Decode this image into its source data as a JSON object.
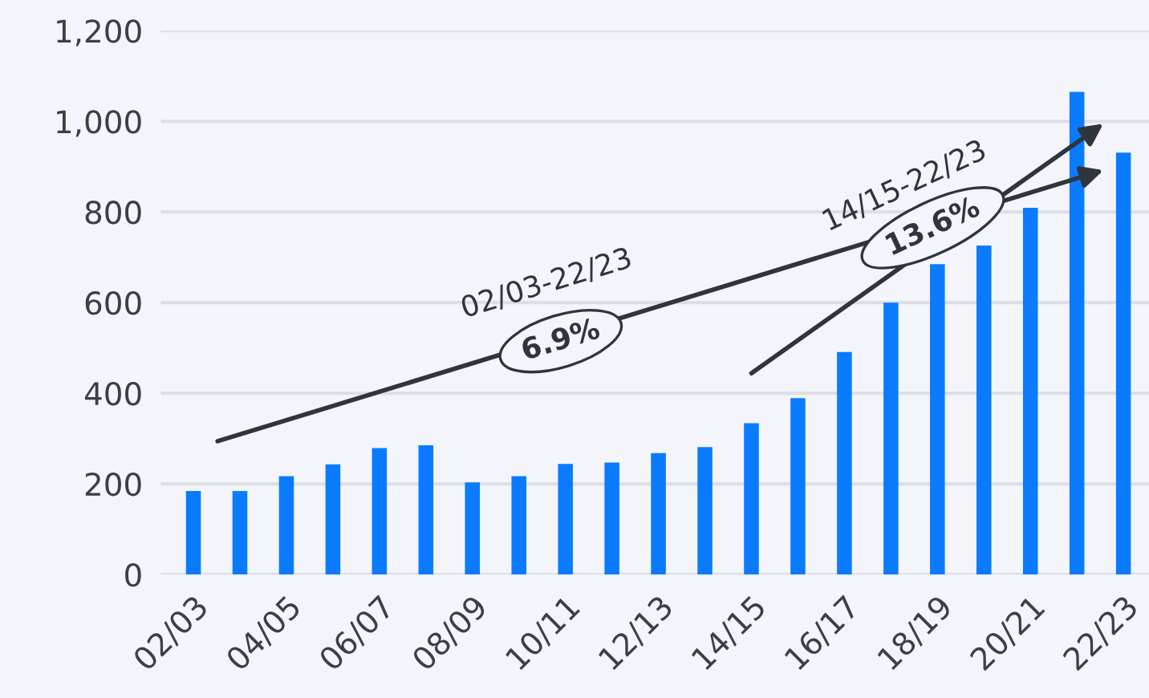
{
  "chart_data": {
    "type": "bar",
    "categories": [
      "02/03",
      null,
      "04/05",
      null,
      "06/07",
      null,
      "08/09",
      null,
      "10/11",
      null,
      "12/13",
      null,
      "14/15",
      null,
      "16/17",
      null,
      "18/19",
      null,
      "20/21",
      null,
      "22/23"
    ],
    "values": [
      184,
      184,
      217,
      243,
      279,
      285,
      203,
      217,
      244,
      247,
      268,
      281,
      334,
      389,
      491,
      600,
      685,
      726,
      809,
      1065,
      931
    ],
    "color": "#0a7bff",
    "ylim": [
      0,
      1200
    ],
    "yticks": [
      0,
      {
        "value": 200,
        "label": "200"
      },
      {
        "value": 400,
        "label": "400"
      },
      {
        "value": 600,
        "label": "600"
      },
      {
        "value": 800,
        "label": "800"
      },
      {
        "value": 1000,
        "label": "1,000"
      },
      {
        "value": 1200,
        "label": "1,200"
      }
    ],
    "grid": "y",
    "annotations": [
      "02/03-22/23",
      "6.9%",
      "14/15-22/23",
      "13.6%"
    ]
  }
}
